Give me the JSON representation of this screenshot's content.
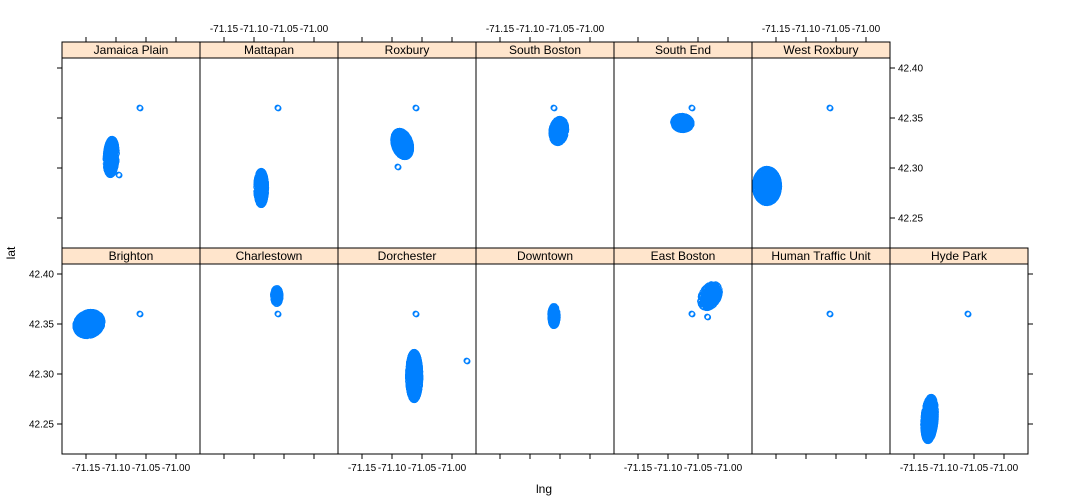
{
  "chart_data": {
    "type": "scatter",
    "layout": "lattice",
    "xlabel": "lng",
    "ylabel": "lat",
    "xlim": [
      -71.19,
      -70.96
    ],
    "ylim": [
      42.22,
      42.41
    ],
    "x_ticks": [
      -71.15,
      -71.1,
      -71.05,
      -71.0
    ],
    "x_tick_labels": [
      "-71.15",
      "-71.10",
      "-71.05",
      "-71.00"
    ],
    "y_ticks": [
      42.25,
      42.3,
      42.35,
      42.4
    ],
    "y_tick_labels": [
      "42.25",
      "42.30",
      "42.35",
      "42.40"
    ],
    "colors": {
      "point": "#0080ff",
      "strip_fill": "#ffe5cc",
      "frame": "#000000"
    },
    "panels": [
      {
        "name": "Brighton",
        "clusters": [
          {
            "cx": -71.145,
            "cy": 42.35,
            "rx": 0.022,
            "ry": 0.012,
            "tilt": 0.35,
            "n": 700
          }
        ],
        "outliers": [
          [
            -71.06,
            42.36
          ]
        ]
      },
      {
        "name": "Charlestown",
        "clusters": [
          {
            "cx": -71.062,
            "cy": 42.378,
            "rx": 0.006,
            "ry": 0.008,
            "tilt": 0,
            "n": 140
          }
        ],
        "outliers": [
          [
            -71.06,
            42.36
          ]
        ]
      },
      {
        "name": "Dorchester",
        "clusters": [
          {
            "cx": -71.063,
            "cy": 42.298,
            "rx": 0.01,
            "ry": 0.024,
            "tilt": 0,
            "n": 800
          }
        ],
        "outliers": [
          [
            -71.06,
            42.36
          ],
          [
            -70.975,
            42.313
          ]
        ]
      },
      {
        "name": "Downtown",
        "clusters": [
          {
            "cx": -71.06,
            "cy": 42.358,
            "rx": 0.006,
            "ry": 0.01,
            "tilt": 0,
            "n": 260
          }
        ],
        "outliers": []
      },
      {
        "name": "East Boston",
        "clusters": [
          {
            "cx": -71.03,
            "cy": 42.378,
            "rx": 0.015,
            "ry": 0.012,
            "tilt": 0.55,
            "n": 320
          }
        ],
        "outliers": [
          [
            -71.06,
            42.36
          ],
          [
            -71.034,
            42.357
          ]
        ]
      },
      {
        "name": "Human Traffic Unit",
        "clusters": [],
        "outliers": [
          [
            -71.06,
            42.36
          ]
        ]
      },
      {
        "name": "Hyde Park",
        "clusters": [
          {
            "cx": -71.124,
            "cy": 42.255,
            "rx": 0.01,
            "ry": 0.022,
            "tilt": 0.15,
            "n": 600
          }
        ],
        "outliers": [
          [
            -71.06,
            42.36
          ]
        ]
      },
      {
        "name": "Jamaica Plain",
        "clusters": [
          {
            "cx": -71.108,
            "cy": 42.311,
            "rx": 0.009,
            "ry": 0.018,
            "tilt": 0.1,
            "n": 500
          }
        ],
        "outliers": [
          [
            -71.06,
            42.36
          ],
          [
            -71.095,
            42.293
          ]
        ]
      },
      {
        "name": "Mattapan",
        "clusters": [
          {
            "cx": -71.088,
            "cy": 42.28,
            "rx": 0.008,
            "ry": 0.017,
            "tilt": 0,
            "n": 450
          }
        ],
        "outliers": [
          [
            -71.06,
            42.36
          ]
        ]
      },
      {
        "name": "Roxbury",
        "clusters": [
          {
            "cx": -71.083,
            "cy": 42.324,
            "rx": 0.014,
            "ry": 0.013,
            "tilt": -0.4,
            "n": 650
          }
        ],
        "outliers": [
          [
            -71.06,
            42.36
          ],
          [
            -71.09,
            42.301
          ]
        ]
      },
      {
        "name": "South Boston",
        "clusters": [
          {
            "cx": -71.052,
            "cy": 42.337,
            "rx": 0.012,
            "ry": 0.012,
            "tilt": 0.2,
            "n": 380
          }
        ],
        "outliers": [
          [
            -71.06,
            42.36
          ]
        ]
      },
      {
        "name": "South End",
        "clusters": [
          {
            "cx": -71.076,
            "cy": 42.345,
            "rx": 0.015,
            "ry": 0.007,
            "tilt": -0.15,
            "n": 400
          }
        ],
        "outliers": [
          [
            -71.06,
            42.36
          ]
        ]
      },
      {
        "name": "West Roxbury",
        "clusters": [
          {
            "cx": -71.165,
            "cy": 42.282,
            "rx": 0.02,
            "ry": 0.017,
            "tilt": 0,
            "n": 800
          }
        ],
        "outliers": [
          [
            -71.06,
            42.36
          ]
        ]
      }
    ]
  }
}
